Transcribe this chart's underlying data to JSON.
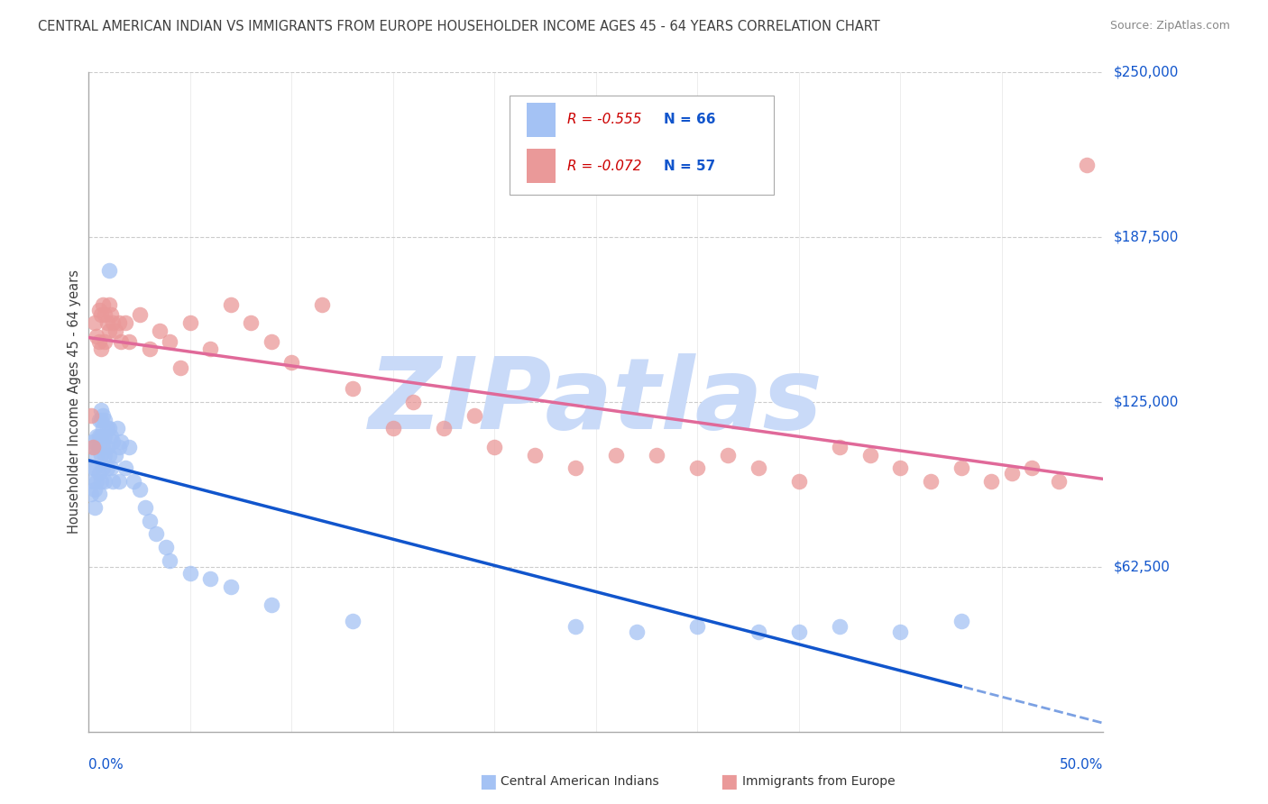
{
  "title": "CENTRAL AMERICAN INDIAN VS IMMIGRANTS FROM EUROPE HOUSEHOLDER INCOME AGES 45 - 64 YEARS CORRELATION CHART",
  "source": "Source: ZipAtlas.com",
  "ylabel": "Householder Income Ages 45 - 64 years",
  "ytick_labels": [
    "$62,500",
    "$125,000",
    "$187,500",
    "$250,000"
  ],
  "ytick_values": [
    62500,
    125000,
    187500,
    250000
  ],
  "xmin": 0.0,
  "xmax": 0.5,
  "ymin": 0,
  "ymax": 250000,
  "legend_blue_r": "R = -0.555",
  "legend_blue_n": "N = 66",
  "legend_pink_r": "R = -0.072",
  "legend_pink_n": "N = 57",
  "blue_scatter_color": "#a4c2f4",
  "pink_scatter_color": "#ea9999",
  "blue_line_color": "#1155cc",
  "pink_line_color": "#e06999",
  "title_color": "#404040",
  "source_color": "#888888",
  "axis_value_color": "#1155cc",
  "watermark_color": "#c9daf8",
  "grid_color": "#cccccc",
  "blue_scatter_x": [
    0.001,
    0.002,
    0.002,
    0.002,
    0.003,
    0.003,
    0.003,
    0.003,
    0.004,
    0.004,
    0.004,
    0.005,
    0.005,
    0.005,
    0.005,
    0.005,
    0.006,
    0.006,
    0.006,
    0.006,
    0.006,
    0.007,
    0.007,
    0.007,
    0.007,
    0.008,
    0.008,
    0.008,
    0.008,
    0.009,
    0.009,
    0.009,
    0.01,
    0.01,
    0.01,
    0.011,
    0.011,
    0.012,
    0.012,
    0.013,
    0.014,
    0.015,
    0.015,
    0.016,
    0.018,
    0.02,
    0.022,
    0.025,
    0.028,
    0.03,
    0.033,
    0.038,
    0.04,
    0.05,
    0.06,
    0.07,
    0.09,
    0.13,
    0.24,
    0.27,
    0.3,
    0.33,
    0.35,
    0.37,
    0.4,
    0.43
  ],
  "blue_scatter_y": [
    90000,
    110000,
    100000,
    95000,
    108000,
    100000,
    92000,
    85000,
    112000,
    105000,
    95000,
    118000,
    112000,
    108000,
    98000,
    90000,
    122000,
    118000,
    112000,
    105000,
    95000,
    120000,
    115000,
    108000,
    100000,
    118000,
    112000,
    105000,
    95000,
    115000,
    108000,
    100000,
    175000,
    115000,
    105000,
    112000,
    100000,
    110000,
    95000,
    105000,
    115000,
    108000,
    95000,
    110000,
    100000,
    108000,
    95000,
    92000,
    85000,
    80000,
    75000,
    70000,
    65000,
    60000,
    58000,
    55000,
    48000,
    42000,
    40000,
    38000,
    40000,
    38000,
    38000,
    40000,
    38000,
    42000
  ],
  "pink_scatter_x": [
    0.001,
    0.002,
    0.003,
    0.004,
    0.005,
    0.005,
    0.006,
    0.006,
    0.007,
    0.008,
    0.008,
    0.009,
    0.01,
    0.01,
    0.011,
    0.012,
    0.013,
    0.015,
    0.016,
    0.018,
    0.02,
    0.025,
    0.03,
    0.035,
    0.04,
    0.045,
    0.05,
    0.06,
    0.07,
    0.08,
    0.09,
    0.1,
    0.115,
    0.13,
    0.15,
    0.16,
    0.175,
    0.19,
    0.2,
    0.22,
    0.24,
    0.26,
    0.28,
    0.3,
    0.315,
    0.33,
    0.35,
    0.37,
    0.385,
    0.4,
    0.415,
    0.43,
    0.445,
    0.455,
    0.465,
    0.478,
    0.492
  ],
  "pink_scatter_y": [
    120000,
    108000,
    155000,
    150000,
    160000,
    148000,
    158000,
    145000,
    162000,
    158000,
    148000,
    155000,
    162000,
    152000,
    158000,
    155000,
    152000,
    155000,
    148000,
    155000,
    148000,
    158000,
    145000,
    152000,
    148000,
    138000,
    155000,
    145000,
    162000,
    155000,
    148000,
    140000,
    162000,
    130000,
    115000,
    125000,
    115000,
    120000,
    108000,
    105000,
    100000,
    105000,
    105000,
    100000,
    105000,
    100000,
    95000,
    108000,
    105000,
    100000,
    95000,
    100000,
    95000,
    98000,
    100000,
    95000,
    215000
  ]
}
